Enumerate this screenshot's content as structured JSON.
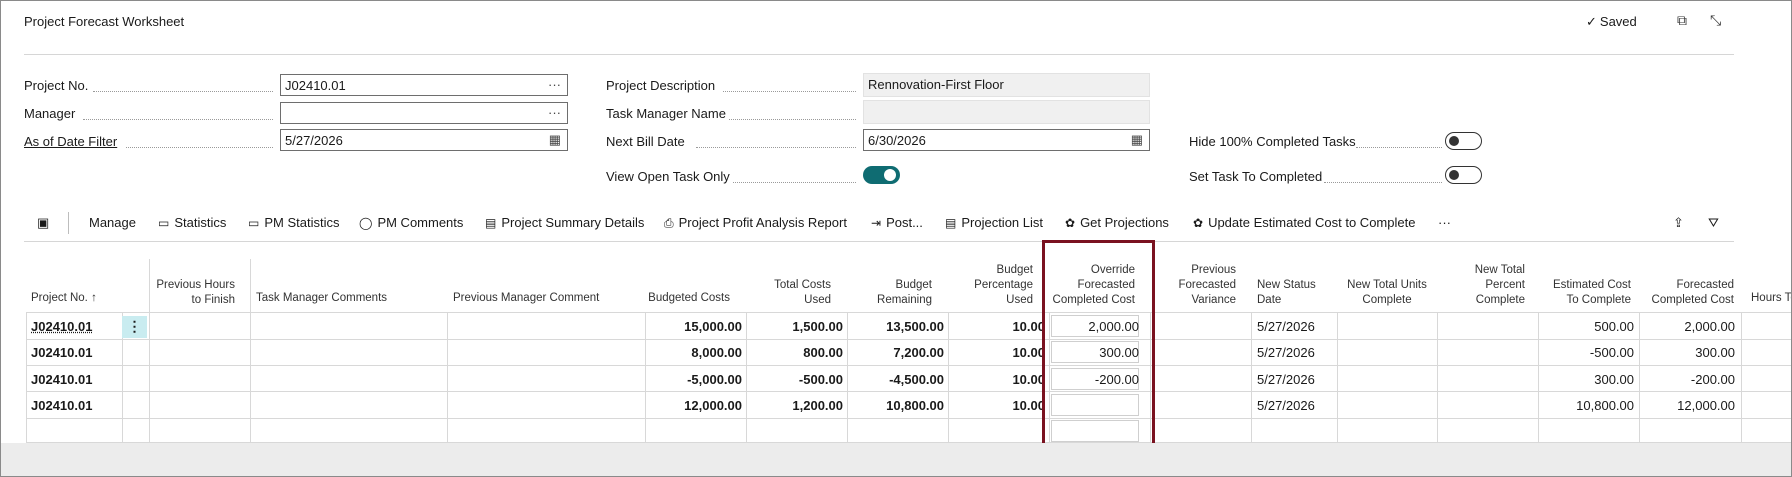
{
  "header": {
    "title": "Project Forecast Worksheet",
    "saved": "Saved",
    "saved_check": "✓",
    "open_new_icon": "⧉",
    "collapse_icon": "⤡"
  },
  "form": {
    "project_no_label": "Project No.",
    "project_no_value": "J02410.01",
    "manager_label": "Manager",
    "manager_value": "",
    "as_of_label": "As of Date Filter",
    "as_of_value": "5/27/2026",
    "desc_label": "Project Description",
    "desc_value": "Rennovation-First Floor",
    "task_mgr_label": "Task Manager Name",
    "task_mgr_value": "",
    "next_bill_label": "Next Bill Date",
    "next_bill_value": "6/30/2026",
    "view_open_label": "View Open Task Only",
    "view_open_on": true,
    "hide_completed_label": "Hide 100% Completed Tasks",
    "hide_completed_on": false,
    "set_completed_label": "Set Task To Completed",
    "set_completed_on": false,
    "ellipsis": "···",
    "calendar_icon": "▦"
  },
  "toolbar": {
    "items": [
      {
        "label": "Manage",
        "icon": ""
      },
      {
        "label": "Statistics",
        "icon": "▭"
      },
      {
        "label": "PM Statistics",
        "icon": "▭"
      },
      {
        "label": "PM Comments",
        "icon": "◯"
      },
      {
        "label": "Project Summary Details",
        "icon": "▤"
      },
      {
        "label": "Project Profit Analysis Report",
        "icon": "⎙"
      },
      {
        "label": "Post...",
        "icon": "⇥"
      },
      {
        "label": "Projection List",
        "icon": "▤"
      },
      {
        "label": "Get Projections",
        "icon": "✿"
      },
      {
        "label": "Update Estimated Cost to Complete",
        "icon": "✿"
      }
    ],
    "more": "···",
    "view_icon": "▣",
    "share_icon": "⇪",
    "filter_icon": "⛛"
  },
  "table": {
    "headers": [
      "Project No. ↑",
      "Previous Hours\nto Finish",
      "Task Manager Comments",
      "Previous Manager Comment",
      "Budgeted Costs",
      "Total Costs\nUsed",
      "Budget\nRemaining",
      "Budget\nPercentage\nUsed",
      "Override\nForecasted\nCompleted Cost",
      "Previous\nForecasted\nVariance",
      "New Status\nDate",
      "New Total Units\nComplete",
      "New Total\nPercent\nComplete",
      "Estimated Cost\nTo Complete",
      "Forecasted\nCompleted Cost",
      "Hours To"
    ],
    "row_menu": "⋮",
    "rows": [
      {
        "project": "J02410.01",
        "budgeted": "15,000.00",
        "total_used": "1,500.00",
        "remaining": "13,500.00",
        "pct": "10.00",
        "override": "2,000.00",
        "status_date": "5/27/2026",
        "est_to_complete": "500.00",
        "forecasted": "2,000.00"
      },
      {
        "project": "J02410.01",
        "budgeted": "8,000.00",
        "total_used": "800.00",
        "remaining": "7,200.00",
        "pct": "10.00",
        "override": "300.00",
        "status_date": "5/27/2026",
        "est_to_complete": "-500.00",
        "forecasted": "300.00"
      },
      {
        "project": "J02410.01",
        "budgeted": "-5,000.00",
        "total_used": "-500.00",
        "remaining": "-4,500.00",
        "pct": "10.00",
        "override": "-200.00",
        "status_date": "5/27/2026",
        "est_to_complete": "300.00",
        "forecasted": "-200.00"
      },
      {
        "project": "J02410.01",
        "budgeted": "12,000.00",
        "total_used": "1,200.00",
        "remaining": "10,800.00",
        "pct": "10.00",
        "override": "",
        "status_date": "5/27/2026",
        "est_to_complete": "10,800.00",
        "forecasted": "12,000.00"
      }
    ]
  },
  "colors": {
    "highlight": "#7a1220",
    "toggle_on": "#0f6c72",
    "selected_cell": "#c9ecf0"
  }
}
